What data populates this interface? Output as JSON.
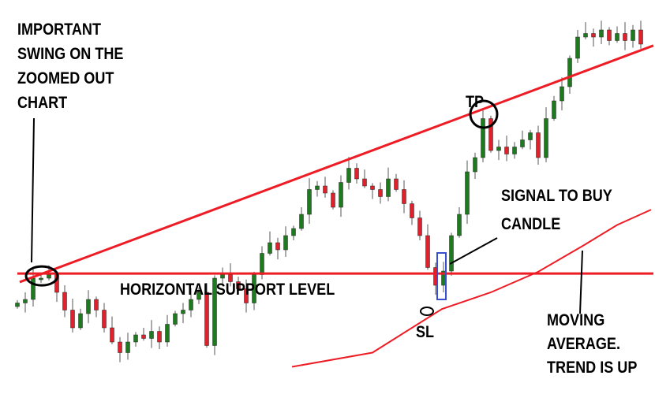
{
  "chart_data": {
    "type": "candlestick",
    "title": "",
    "axes_shown": false,
    "grid": false,
    "colors": {
      "up": "#1e7a1e",
      "down": "#e0202a",
      "wick": "#555555",
      "lines": "#ee1c25",
      "annotation": "#000000",
      "signal_box": "#3a4fd0"
    },
    "closes": [
      19,
      20,
      26,
      26,
      27,
      22,
      17,
      12,
      16,
      20,
      17,
      12,
      8,
      5,
      8,
      10,
      9,
      11,
      8,
      13,
      16,
      17,
      20,
      22,
      7,
      26,
      27,
      25,
      23,
      19,
      27,
      33,
      36,
      34,
      38,
      40,
      44,
      51,
      52,
      50,
      46,
      53,
      57,
      54,
      52,
      51,
      49,
      54,
      51,
      47,
      43,
      38,
      29,
      24,
      28,
      38,
      44,
      56,
      60,
      71,
      62,
      63,
      61,
      63,
      65,
      67,
      60,
      71,
      76,
      80,
      88,
      94,
      95,
      94,
      96,
      93,
      95,
      93,
      96,
      92
    ],
    "start_open": 18,
    "support_level": 27.3,
    "trendline": {
      "from": [
        0,
        24.9
      ],
      "to": [
        80.6,
        91.6
      ]
    },
    "moving_average": [
      [
        34.8,
        1
      ],
      [
        45,
        5
      ],
      [
        53.8,
        17.3
      ],
      [
        60,
        22
      ],
      [
        66,
        27.8
      ],
      [
        71.8,
        35.3
      ],
      [
        76,
        41
      ],
      [
        80.3,
        45.3
      ]
    ],
    "signal_candle_index": 54,
    "tp_candle_index": 59,
    "sl_candle_index": 53,
    "swing_candle_index": 3
  },
  "annotations": {
    "swing": [
      "IMPORTANT",
      "SWING ON THE",
      "ZOOMED OUT",
      "CHART"
    ],
    "tp": "TP",
    "sl": "SL",
    "signal": [
      "SIGNAL TO BUY",
      "CANDLE"
    ],
    "support": "HORIZONTAL SUPPORT LEVEL",
    "ma": [
      "MOVING",
      "AVERAGE.",
      "TREND IS UP"
    ]
  }
}
